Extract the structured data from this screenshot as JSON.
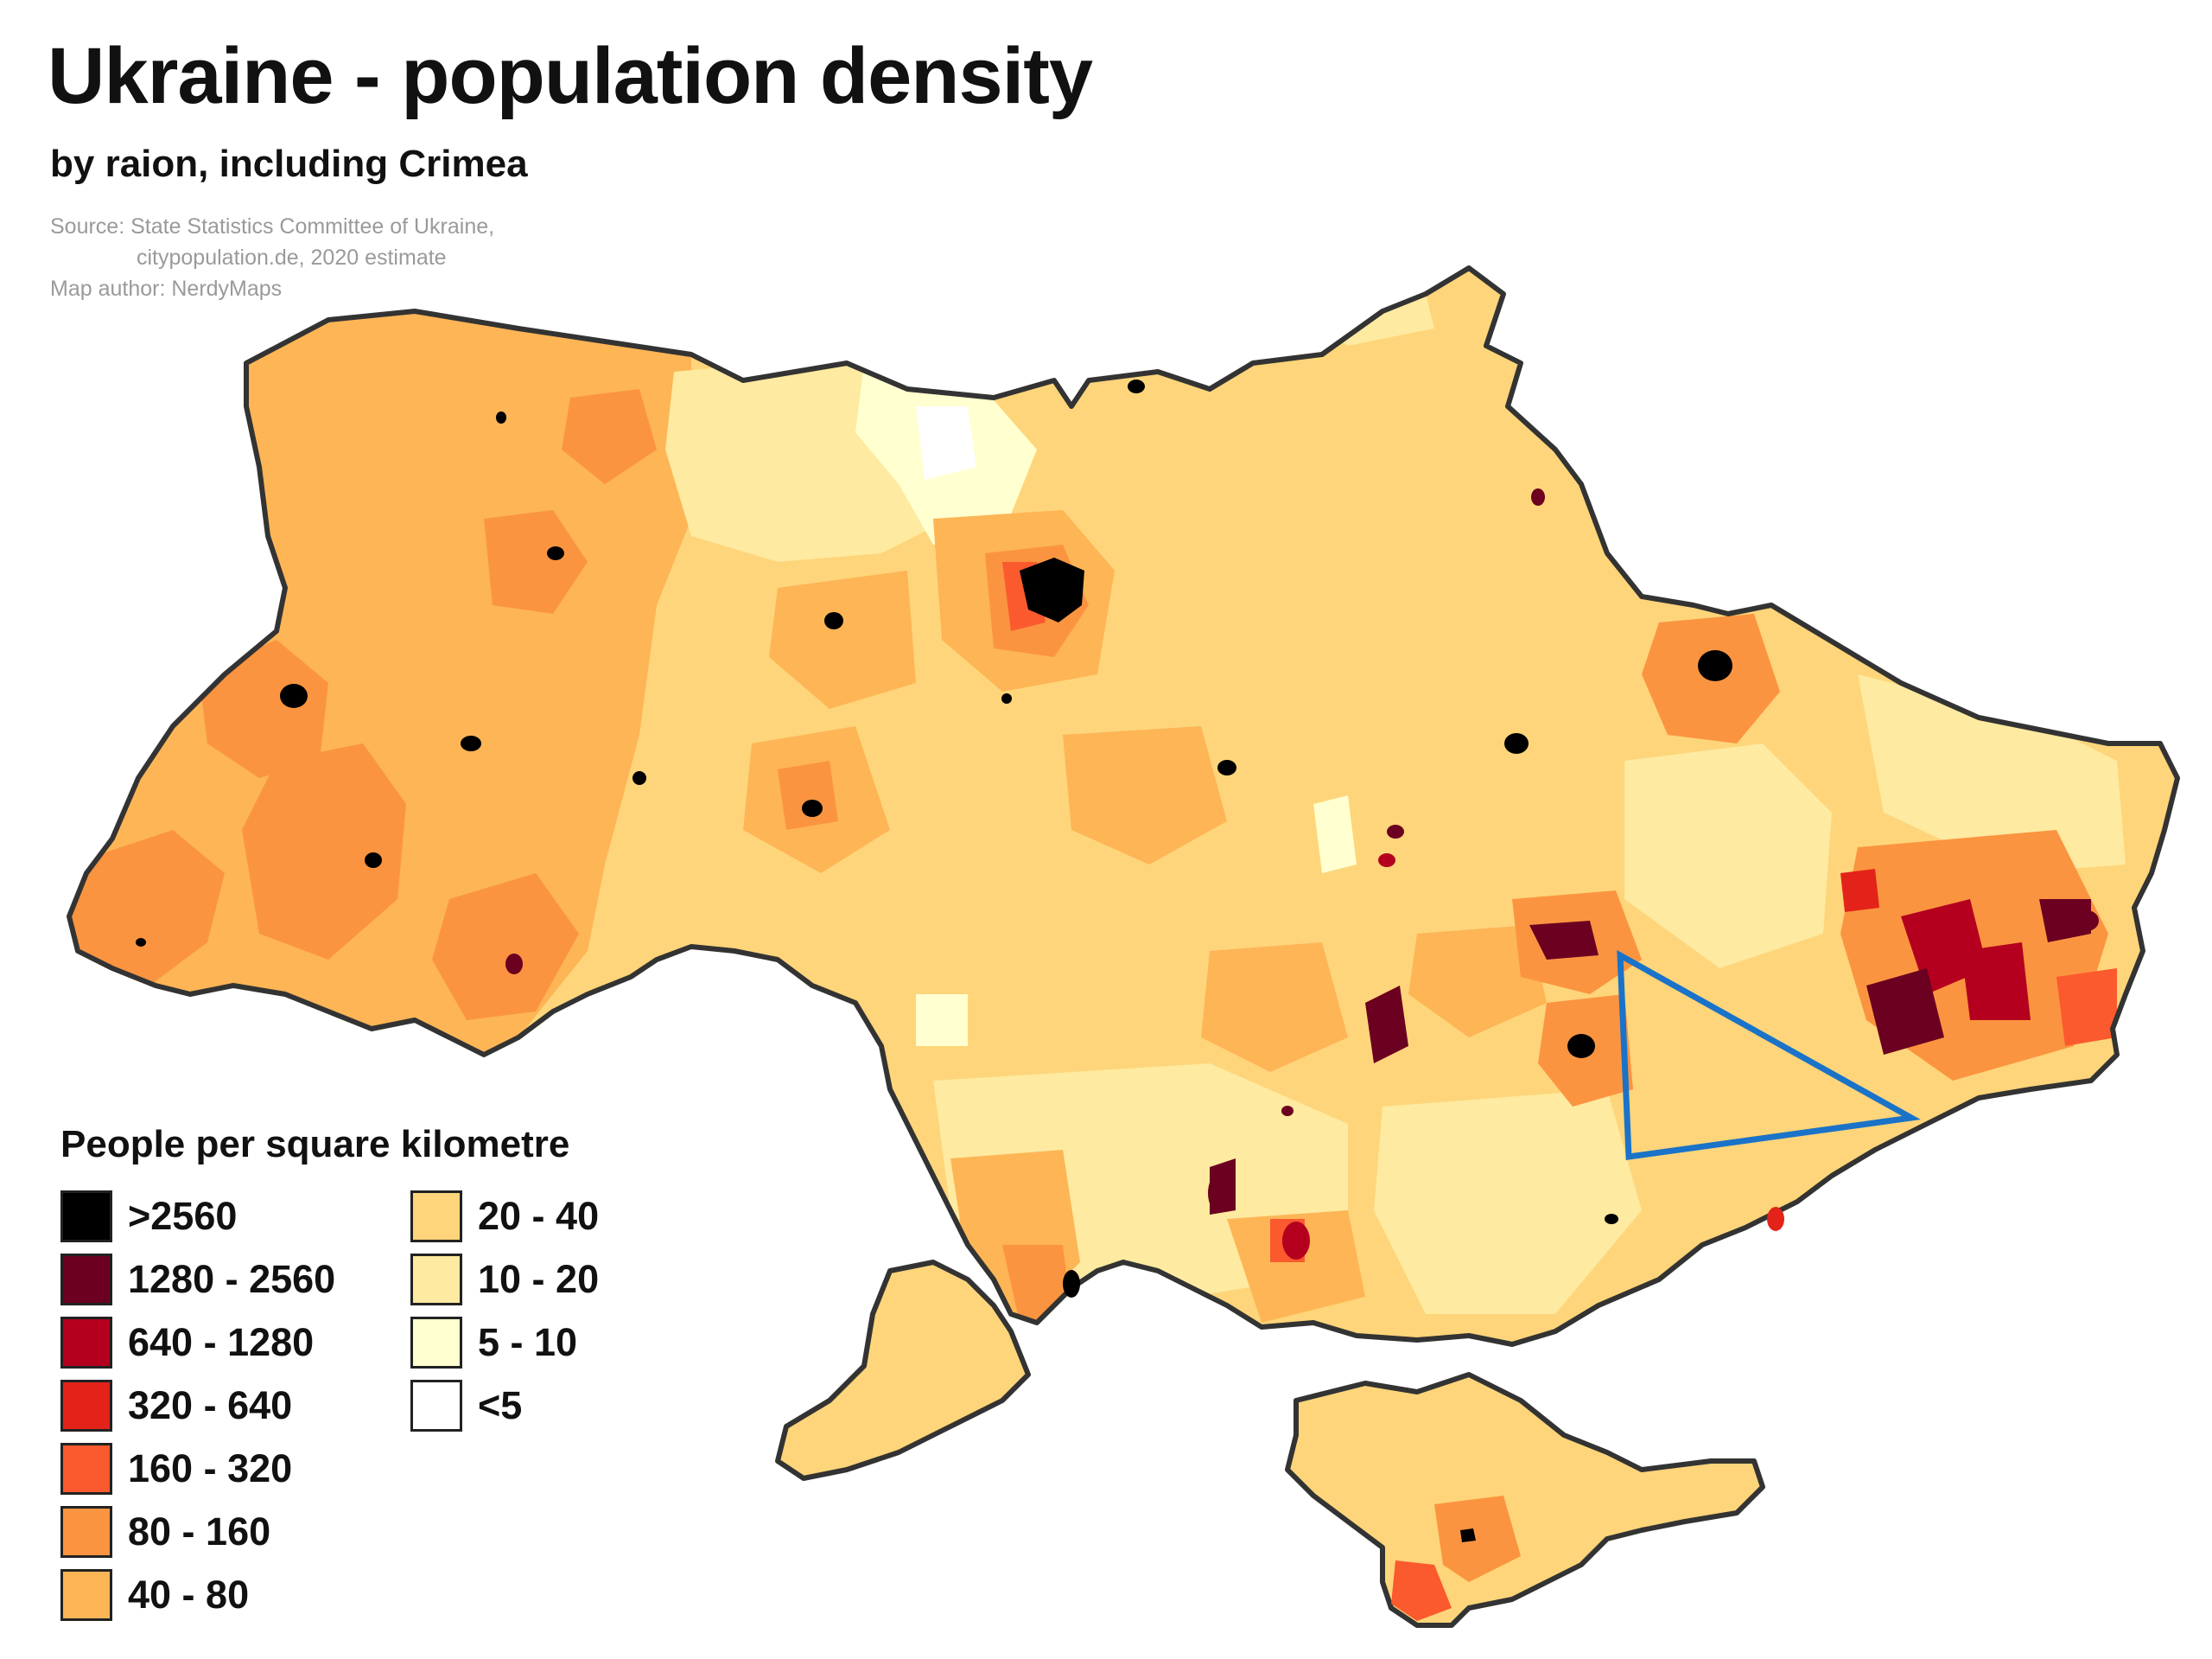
{
  "header": {
    "title": "Ukraine - population density",
    "subtitle": "by raion, including Crimea",
    "source_line1": "Source: State Statistics Committee of Ukraine,",
    "source_line2": "citypopulation.de, 2020 estimate",
    "author": "Map author: NerdyMaps"
  },
  "legend": {
    "title": "People per square kilometre",
    "classes": [
      {
        "label": ">2560",
        "color": "#000000"
      },
      {
        "label": "1280 - 2560",
        "color": "#6b0020"
      },
      {
        "label": "640 - 1280",
        "color": "#b4001e"
      },
      {
        "label": "320 - 640",
        "color": "#e3231a"
      },
      {
        "label": "160 - 320",
        "color": "#fb5a2e"
      },
      {
        "label": "80 - 160",
        "color": "#fb9440"
      },
      {
        "label": "40 - 80",
        "color": "#fdb556"
      },
      {
        "label": "20 - 40",
        "color": "#fed57a"
      },
      {
        "label": "10 - 20",
        "color": "#feeaa0"
      },
      {
        "label": "5 - 10",
        "color": "#ffffcf"
      },
      {
        "label": "<5",
        "color": "#ffffff"
      }
    ]
  },
  "map": {
    "outline_color": "#333333",
    "annotation_color": "#1a73c8"
  }
}
